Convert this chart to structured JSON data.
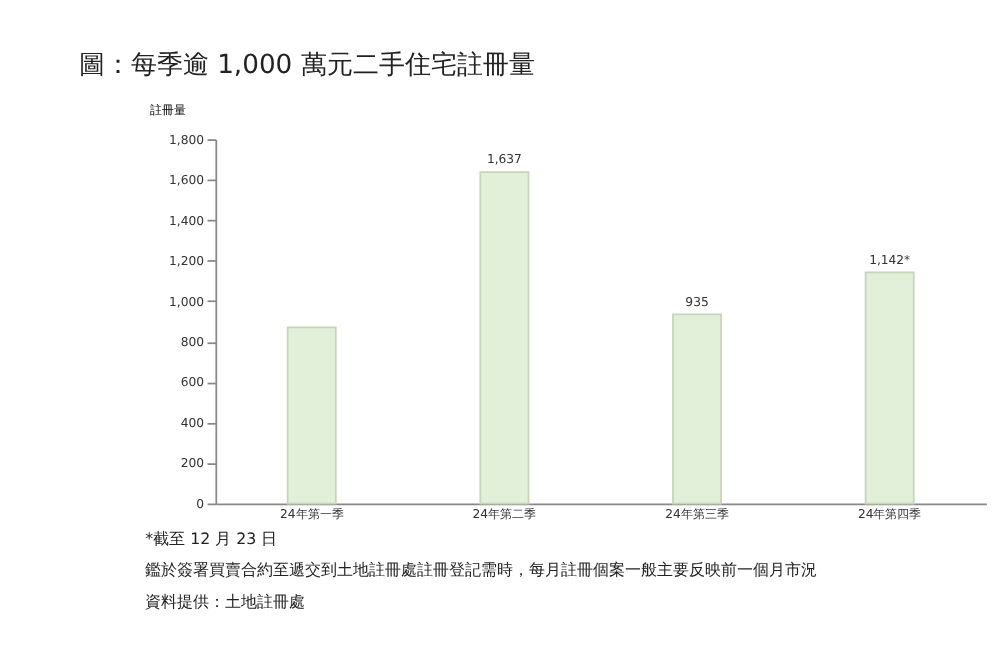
{
  "chart_data": {
    "type": "bar",
    "title": "圖：每季逾 1,000 萬元二手住宅註冊量",
    "ylabel": "註冊量",
    "categories": [
      "24年第一季",
      "24年第二季",
      "24年第三季",
      "24年第四季"
    ],
    "values": [
      870,
      1637,
      935,
      1142
    ],
    "value_labels": [
      null,
      "1,637",
      "935",
      "1,142*"
    ],
    "color": "#e2efd9",
    "ylim": [
      0,
      1800
    ],
    "yticks": [
      0,
      200,
      400,
      600,
      800,
      {
        "value": 1000,
        "label": "1,000"
      },
      {
        "value": 1200,
        "label": "1,200"
      },
      {
        "value": 1400,
        "label": "1,400"
      },
      {
        "value": 1600,
        "label": "1,600"
      },
      {
        "value": 1800,
        "label": "1,800"
      }
    ],
    "grid": false,
    "annotations": [
      "*截至 12 月 23 日",
      "鑑於簽署買賣合約至遞交到土地註冊處註冊登記需時，每月註冊個案一般主要反映前一個月市況",
      "資料提供：土地註冊處"
    ]
  }
}
